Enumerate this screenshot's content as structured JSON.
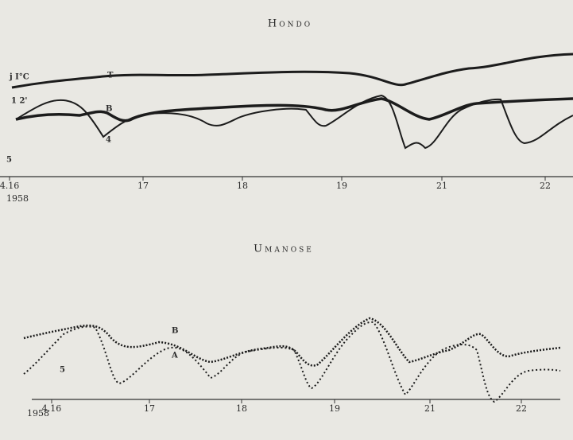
{
  "panels": [
    {
      "title": "Hondo",
      "side_labels": [
        "j I°C",
        "1 2'",
        "5"
      ],
      "curve_labels": [
        "T",
        "B",
        "4"
      ],
      "ticks": [
        "4.16",
        "17",
        "18",
        "19",
        "21",
        "22"
      ],
      "year": "1958"
    },
    {
      "title": "Umanose",
      "side_labels": [
        "5"
      ],
      "curve_labels": [
        "B",
        "A"
      ],
      "ticks": [
        "4.16",
        "17",
        "18",
        "19",
        "21",
        "22"
      ],
      "year": "1958"
    }
  ]
}
